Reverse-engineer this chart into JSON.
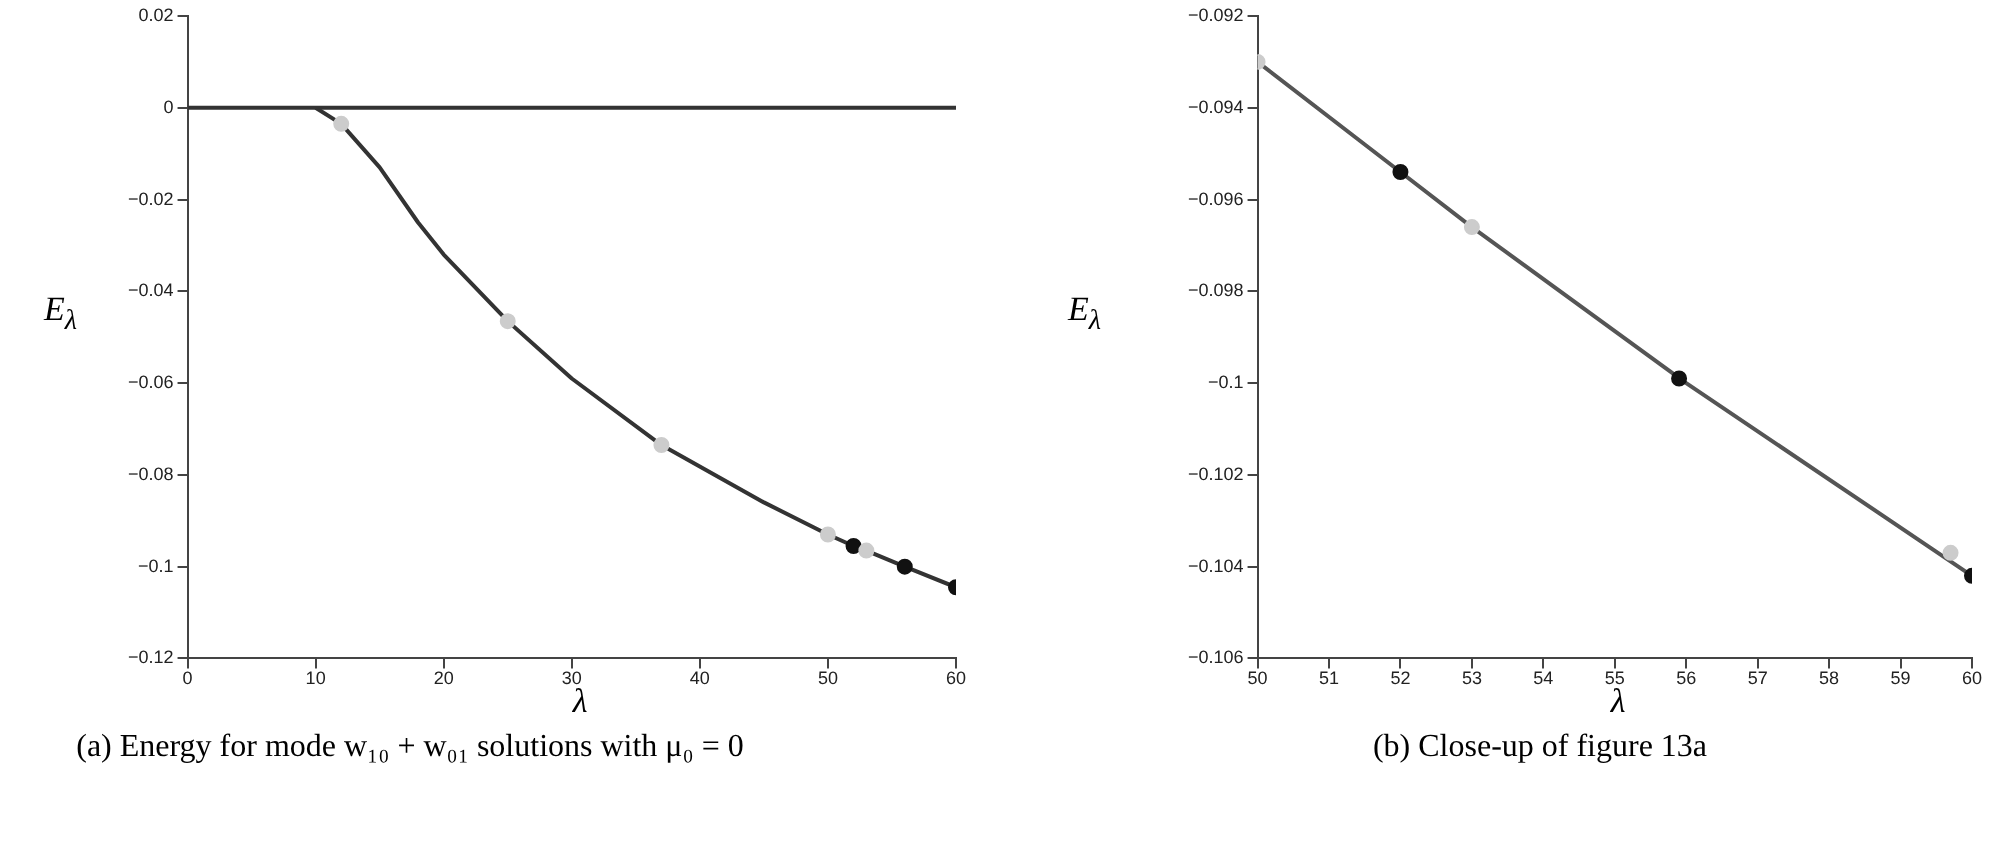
{
  "chart_data": [
    {
      "type": "line",
      "xlabel": "λ",
      "ylabel": "E$_{λ}$",
      "xlim": [
        0,
        60
      ],
      "xticks": [
        0,
        10,
        20,
        30,
        40,
        50,
        60
      ],
      "ylim": [
        -0.12,
        0.02
      ],
      "yticks": [
        -0.12,
        -0.1,
        -0.08,
        -0.06,
        -0.04,
        -0.02,
        0,
        0.02
      ],
      "grid": false,
      "legend": false,
      "marker": "none",
      "line_style": "solid",
      "annotations": [
        "(a) Energy for mode w₁₀ + w₀₁ solutions with μ₀ = 0"
      ],
      "series": [
        {
          "color": "#333333",
          "x": [
            0,
            60
          ],
          "values": [
            0,
            0
          ]
        },
        {
          "color": "#333333",
          "x": [
            10,
            12,
            15,
            18,
            20,
            25,
            30,
            37,
            45,
            50,
            52,
            53,
            56,
            60
          ],
          "values": [
            0,
            -0.0035,
            -0.013,
            -0.025,
            -0.032,
            -0.0465,
            -0.059,
            -0.0735,
            -0.086,
            -0.093,
            -0.0955,
            -0.0965,
            -0.1,
            -0.1045
          ]
        },
        {
          "type": "scatter",
          "color": "#cccccc",
          "marker": "circle",
          "x": [
            12,
            25,
            37,
            50,
            53
          ],
          "values": [
            -0.0035,
            -0.0465,
            -0.0735,
            -0.093,
            -0.0965
          ]
        },
        {
          "type": "scatter",
          "color": "#111111",
          "marker": "circle",
          "x": [
            52,
            56,
            60
          ],
          "values": [
            -0.0955,
            -0.1,
            -0.1045
          ]
        }
      ]
    },
    {
      "type": "line",
      "xlabel": "λ",
      "ylabel": "E$_{λ}$",
      "xlim": [
        50,
        60
      ],
      "xticks": [
        50,
        51,
        52,
        53,
        54,
        55,
        56,
        57,
        58,
        59,
        60
      ],
      "ylim": [
        -0.106,
        -0.092
      ],
      "yticks": [
        -0.106,
        -0.104,
        -0.102,
        -0.1,
        -0.098,
        -0.096,
        -0.094,
        -0.092
      ],
      "grid": false,
      "legend": false,
      "marker": "none",
      "line_style": "solid",
      "annotations": [
        "(b) Close-up of figure 13a"
      ],
      "series": [
        {
          "color": "#555555",
          "x": [
            50,
            52,
            53,
            56,
            60
          ],
          "values": [
            -0.093,
            -0.0954,
            -0.0966,
            -0.1,
            -0.1042
          ]
        },
        {
          "type": "scatter",
          "color": "#cccccc",
          "marker": "circle",
          "x": [
            50,
            53,
            59.7
          ],
          "values": [
            -0.093,
            -0.0966,
            -0.1037
          ]
        },
        {
          "type": "scatter",
          "color": "#111111",
          "marker": "circle",
          "x": [
            52,
            55.9,
            60
          ],
          "values": [
            -0.0954,
            -0.0999,
            -0.1042
          ]
        }
      ]
    }
  ]
}
